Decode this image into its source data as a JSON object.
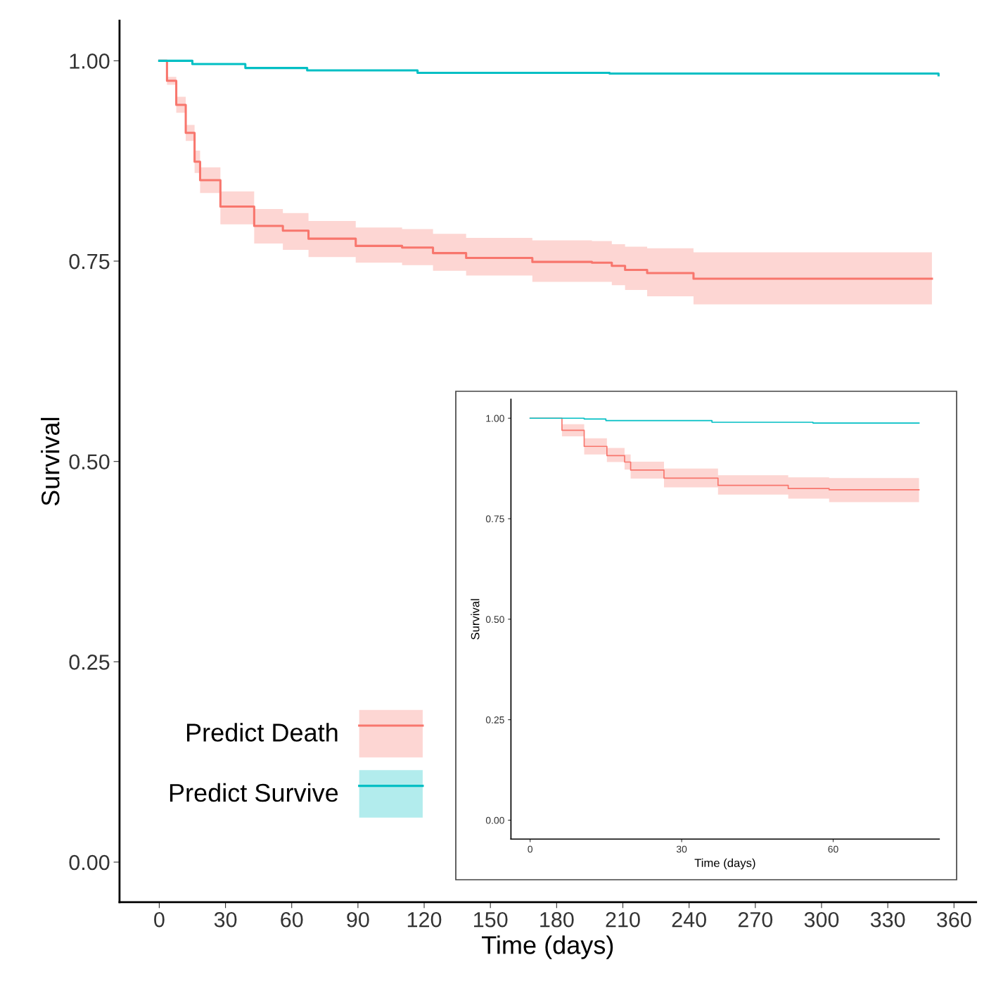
{
  "chart_data": [
    {
      "type": "step",
      "xlabel": "Time (days)",
      "ylabel": "Survival",
      "xlim": [
        -18,
        370
      ],
      "ylim": [
        -0.05,
        1.05
      ],
      "xticks": [
        0,
        30,
        60,
        90,
        120,
        150,
        180,
        210,
        240,
        270,
        300,
        330,
        360
      ],
      "yticks": [
        {
          "value": 0,
          "label": "0.00"
        },
        {
          "value": 0.25,
          "label": "0.25"
        },
        {
          "value": 0.5,
          "label": "0.50"
        },
        {
          "value": 0.75,
          "label": "0.75"
        },
        {
          "value": 1,
          "label": "1.00"
        }
      ],
      "legend": "bottom left",
      "grid": false,
      "series": [
        {
          "name": "Predict Death",
          "color": "#f8766d",
          "x": [
            0,
            3.5,
            7.7,
            12,
            16,
            18.5,
            27.7,
            43,
            56,
            67.6,
            89,
            110,
            124,
            139,
            169,
            196,
            205,
            211,
            221,
            242,
            350
          ],
          "values": [
            1.0,
            0.975,
            0.945,
            0.91,
            0.874,
            0.851,
            0.818,
            0.794,
            0.788,
            0.778,
            0.769,
            0.767,
            0.76,
            0.754,
            0.749,
            0.748,
            0.744,
            0.739,
            0.735,
            0.728,
            0.728
          ],
          "lower": [
            1.0,
            0.97,
            0.935,
            0.9,
            0.86,
            0.835,
            0.796,
            0.772,
            0.764,
            0.755,
            0.748,
            0.745,
            0.738,
            0.732,
            0.724,
            0.724,
            0.72,
            0.714,
            0.706,
            0.696,
            0.696
          ],
          "upper": [
            1.0,
            0.98,
            0.955,
            0.92,
            0.888,
            0.867,
            0.837,
            0.815,
            0.81,
            0.8,
            0.792,
            0.79,
            0.784,
            0.779,
            0.776,
            0.775,
            0.771,
            0.768,
            0.766,
            0.761,
            0.761
          ]
        },
        {
          "name": "Predict Survive",
          "color": "#00bfc4",
          "x": [
            0,
            15,
            39,
            67,
            117,
            204,
            353
          ],
          "values": [
            1.0,
            0.996,
            0.991,
            0.988,
            0.985,
            0.984,
            0.982
          ]
        }
      ]
    },
    {
      "type": "step",
      "xlabel": "Time (days)",
      "ylabel": "Survival",
      "xlim": [
        -3.8,
        81
      ],
      "ylim": [
        -0.047,
        1.047
      ],
      "xticks": [
        0,
        30,
        60
      ],
      "yticks": [
        {
          "value": 0,
          "label": "0.00"
        },
        {
          "value": 0.25,
          "label": "0.25"
        },
        {
          "value": 0.5,
          "label": "0.50"
        },
        {
          "value": 0.75,
          "label": "0.75"
        },
        {
          "value": 1,
          "label": "1.00"
        }
      ],
      "legend": false,
      "grid": false,
      "series": [
        {
          "color": "#f8766d",
          "x": [
            0,
            6.3,
            10.7,
            15.2,
            18.7,
            19.9,
            26.5,
            37.2,
            51.1,
            59.2,
            77
          ],
          "values": [
            1.0,
            0.97,
            0.93,
            0.907,
            0.891,
            0.871,
            0.851,
            0.833,
            0.825,
            0.822,
            0.822
          ],
          "lower": [
            1.0,
            0.955,
            0.91,
            0.891,
            0.872,
            0.85,
            0.828,
            0.81,
            0.8,
            0.791,
            0.791
          ],
          "upper": [
            1.0,
            0.985,
            0.95,
            0.926,
            0.91,
            0.892,
            0.875,
            0.858,
            0.853,
            0.851,
            0.851
          ]
        },
        {
          "color": "#00bfc4",
          "x": [
            0,
            10.7,
            15,
            36,
            56,
            77
          ],
          "values": [
            1.0,
            0.998,
            0.994,
            0.99,
            0.988,
            0.988
          ]
        }
      ]
    }
  ]
}
